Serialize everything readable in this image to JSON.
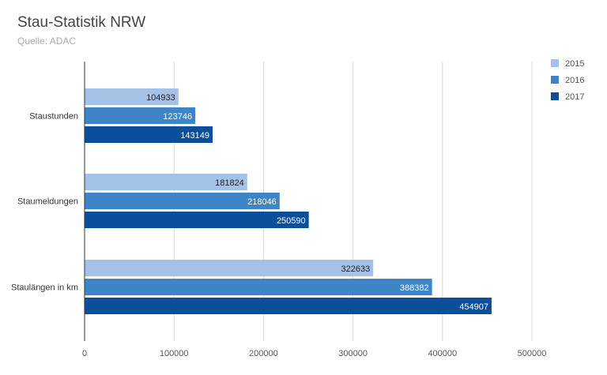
{
  "chart_data": {
    "type": "bar",
    "orientation": "horizontal",
    "title": "Stau-Statistik NRW",
    "subtitle": "Quelle: ADAC",
    "categories": [
      "Staustunden",
      "Staumeldungen",
      "Staulängen in km"
    ],
    "series": [
      {
        "name": "2015",
        "color": "#a4c2e8",
        "values": [
          104933,
          181824,
          322633
        ]
      },
      {
        "name": "2016",
        "color": "#3d85c6",
        "values": [
          123746,
          218046,
          388382
        ]
      },
      {
        "name": "2017",
        "color": "#0b4f9a",
        "values": [
          143149,
          250590,
          454907
        ]
      }
    ],
    "xlim": [
      0,
      500000
    ],
    "xticks": [
      0,
      100000,
      200000,
      300000,
      400000,
      500000
    ],
    "grid": true,
    "legend_position": "top-right",
    "data_labels": true
  }
}
